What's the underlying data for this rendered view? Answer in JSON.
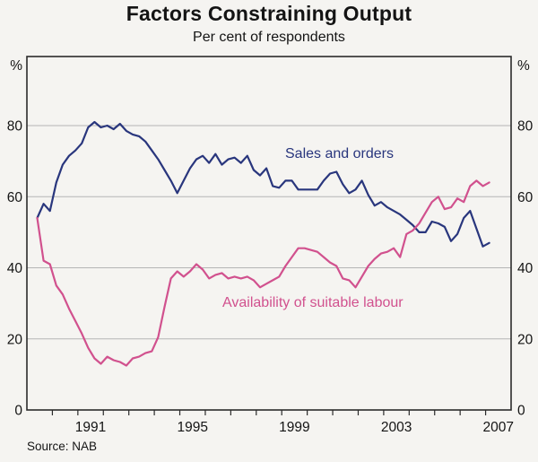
{
  "page": {
    "title": "Factors Constraining Output",
    "subtitle": "Per cent of respondents",
    "source": "Source: NAB"
  },
  "axes": {
    "unit_left": "%",
    "unit_right": "%",
    "y_tick_labels": [
      "80",
      "60",
      "40",
      "20",
      "0"
    ],
    "x_tick_labels": [
      "1991",
      "1995",
      "1999",
      "2003",
      "2007"
    ]
  },
  "series_labels": {
    "sales": "Sales and orders",
    "labour": "Availability of suitable labour"
  },
  "colors": {
    "sales": "#29367d",
    "labour": "#d1518e",
    "grid": "#b5b5b5",
    "axis": "#2b2b2b",
    "text": "#141414"
  },
  "chart_data": {
    "type": "line",
    "title": "Factors Constraining Output",
    "subtitle": "Per cent of respondents",
    "source": "Source: NAB",
    "frequency": "quarterly",
    "x_range": [
      "1989Q2",
      "2007Q1"
    ],
    "ylim": [
      0,
      100
    ],
    "yticks": [
      0,
      20,
      40,
      60,
      80
    ],
    "grid": "horizontal-only",
    "x_tick_years_labelled": [
      1991,
      1995,
      1999,
      2003,
      2007
    ],
    "x_minor_ticks": "every year 1990-2007",
    "legend_position": "inline-labels",
    "series": [
      {
        "name": "Sales and orders",
        "color": "#29367d",
        "values": [
          54,
          58,
          56,
          64,
          69,
          71.5,
          73,
          75,
          79.5,
          81,
          79.5,
          80,
          79,
          80.5,
          78.5,
          77.5,
          77,
          75.5,
          73,
          70.5,
          67.5,
          64.5,
          61,
          64.5,
          68,
          70.5,
          71.5,
          69.5,
          72,
          69,
          70.5,
          71,
          69.5,
          71.5,
          67.5,
          66,
          68,
          63,
          62.5,
          64.5,
          64.5,
          62,
          62,
          62,
          62,
          64.5,
          66.5,
          67,
          63.5,
          61,
          62,
          64.5,
          60.5,
          57.5,
          58.5,
          57,
          56,
          55,
          53.5,
          52,
          50,
          50,
          53,
          52.5,
          51.5,
          47.5,
          49.5,
          54,
          56,
          51,
          46,
          47
        ]
      },
      {
        "name": "Availability of suitable labour",
        "color": "#d1518e",
        "values": [
          54,
          42,
          41,
          35,
          32.5,
          28.5,
          25,
          21.5,
          17.5,
          14.5,
          13,
          15,
          14,
          13.5,
          12.5,
          14.5,
          15,
          16,
          16.5,
          20.5,
          29,
          37,
          39,
          37.5,
          39,
          41,
          39.5,
          37,
          38,
          38.5,
          37,
          37.5,
          37,
          37.5,
          36.5,
          34.5,
          35.5,
          36.5,
          37.5,
          40.5,
          43,
          45.5,
          45.5,
          45,
          44.5,
          43,
          41.5,
          40.5,
          37,
          36.5,
          34.5,
          37.5,
          40.5,
          42.5,
          44,
          44.5,
          45.5,
          43,
          49.5,
          50.5,
          52.5,
          55.5,
          58.5,
          60,
          56.5,
          57,
          59.5,
          58.5,
          63,
          64.5,
          63,
          64
        ]
      }
    ]
  }
}
